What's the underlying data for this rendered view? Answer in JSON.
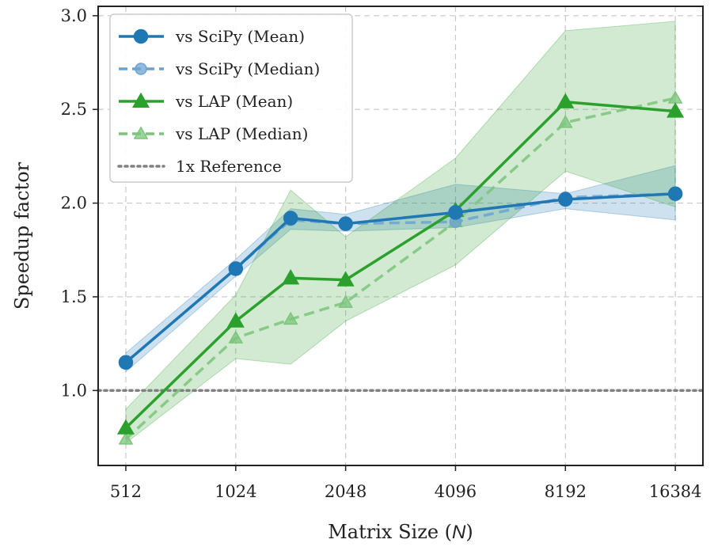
{
  "chart_data": {
    "type": "line",
    "xlabel": "Matrix Size (",
    "xlabel_var": "N",
    "xlabel_close": ")",
    "ylabel": "Speedup factor",
    "x_scale": "log2",
    "x_ticks": [
      512,
      1024,
      2048,
      4096,
      8192,
      16384
    ],
    "x_tick_labels": [
      "512",
      "1024",
      "2048",
      "4096",
      "8192",
      "16384"
    ],
    "y_ticks": [
      1.0,
      1.5,
      2.0,
      2.5,
      3.0
    ],
    "y_tick_labels": [
      "1.0",
      "1.5",
      "2.0",
      "2.5",
      "3.0"
    ],
    "xlim": [
      430,
      19500
    ],
    "ylim": [
      0.6,
      3.05
    ],
    "grid": true,
    "legend_position": "upper-left",
    "reference_line": {
      "name": "1x Reference",
      "y": 1.0,
      "color": "#808080"
    },
    "series": [
      {
        "name": "vs SciPy (Mean)",
        "color": "#1f77b4",
        "marker": "circle",
        "linestyle": "solid",
        "x": [
          512,
          1024,
          1448,
          2048,
          4096,
          8192,
          16384
        ],
        "y": [
          1.15,
          1.65,
          1.92,
          1.89,
          1.95,
          2.02,
          2.05
        ],
        "band_low": [
          1.1,
          1.61,
          1.86,
          1.85,
          1.87,
          1.97,
          1.91
        ],
        "band_high": [
          1.2,
          1.7,
          1.97,
          1.94,
          2.1,
          2.05,
          2.2
        ]
      },
      {
        "name": "vs SciPy (Median)",
        "color": "#6da3d2",
        "marker": "circle",
        "linestyle": "dashed",
        "x": [
          512,
          1024,
          1448,
          2048,
          4096,
          8192,
          16384
        ],
        "y": [
          1.15,
          1.65,
          1.91,
          1.89,
          1.9,
          2.03,
          2.05
        ]
      },
      {
        "name": "vs LAP (Mean)",
        "color": "#2ca02c",
        "marker": "triangle",
        "linestyle": "solid",
        "x": [
          512,
          1024,
          1448,
          2048,
          4096,
          8192,
          16384
        ],
        "y": [
          0.8,
          1.37,
          1.6,
          1.59,
          1.96,
          2.54,
          2.49
        ],
        "band_low": [
          0.72,
          1.17,
          1.14,
          1.37,
          1.67,
          2.17,
          1.98
        ],
        "band_high": [
          0.9,
          1.51,
          2.07,
          1.82,
          2.24,
          2.92,
          2.97
        ]
      },
      {
        "name": "vs LAP (Median)",
        "color": "#7cc47c",
        "marker": "triangle",
        "linestyle": "dashed",
        "x": [
          512,
          1024,
          1448,
          2048,
          4096,
          8192,
          16384
        ],
        "y": [
          0.74,
          1.28,
          1.38,
          1.47,
          1.9,
          2.43,
          2.56
        ]
      }
    ]
  }
}
